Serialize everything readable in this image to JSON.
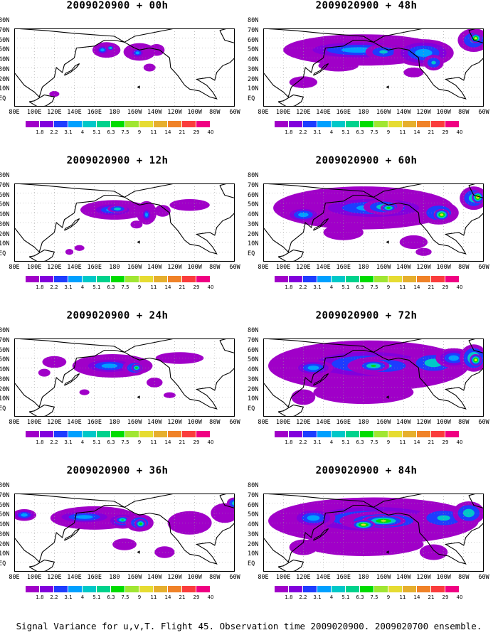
{
  "footer": "Signal Variance for u,v,T. Flight 45. Observation time 2009020900. 2009020700 ensemble.",
  "colorbar": {
    "labels": [
      "1.8",
      "2.2",
      "3.1",
      "4",
      "5.1",
      "6.3",
      "7.5",
      "9",
      "11",
      "14",
      "21",
      "29",
      "40"
    ],
    "colors": [
      "#a000c8",
      "#8200dc",
      "#1e3cff",
      "#00a0ff",
      "#00c8c8",
      "#00d28c",
      "#00dc00",
      "#a0e632",
      "#e6dc32",
      "#e6af2d",
      "#f08228",
      "#fa3c3c",
      "#f00082"
    ]
  },
  "axes": {
    "x_labels": [
      "80E",
      "100E",
      "120E",
      "140E",
      "160E",
      "180",
      "160W",
      "140W",
      "120W",
      "100W",
      "80W",
      "60W"
    ],
    "y_labels": [
      "80N",
      "70N",
      "60N",
      "50N",
      "40N",
      "30N",
      "20N",
      "10N",
      "EQ"
    ]
  },
  "chart_data": [
    {
      "type": "heatmap",
      "title": "2009020900 + 00h",
      "lead": "00h",
      "extent": "small",
      "ylabel_form": "partial"
    },
    {
      "type": "heatmap",
      "title": "2009020900 + 12h",
      "lead": "12h",
      "extent": "small",
      "ylabel_form": "partial"
    },
    {
      "type": "heatmap",
      "title": "2009020900 + 24h",
      "lead": "24h",
      "extent": "medium",
      "ylabel_form": "partial"
    },
    {
      "type": "heatmap",
      "title": "2009020900 + 36h",
      "lead": "36h",
      "extent": "medium",
      "ylabel_form": "partial"
    },
    {
      "type": "heatmap",
      "title": "2009020900 + 48h",
      "lead": "48h",
      "extent": "large",
      "ylabel_form": "partial"
    },
    {
      "type": "heatmap",
      "title": "2009020900 + 60h",
      "lead": "60h",
      "extent": "large",
      "ylabel_form": "partial"
    },
    {
      "type": "heatmap",
      "title": "2009020900 + 72h",
      "lead": "72h",
      "extent": "xlarge",
      "ylabel_form": "partial"
    },
    {
      "type": "heatmap",
      "title": "2009020900 + 84h",
      "lead": "84h",
      "extent": "xlarge",
      "ylabel_form": "partial"
    }
  ]
}
